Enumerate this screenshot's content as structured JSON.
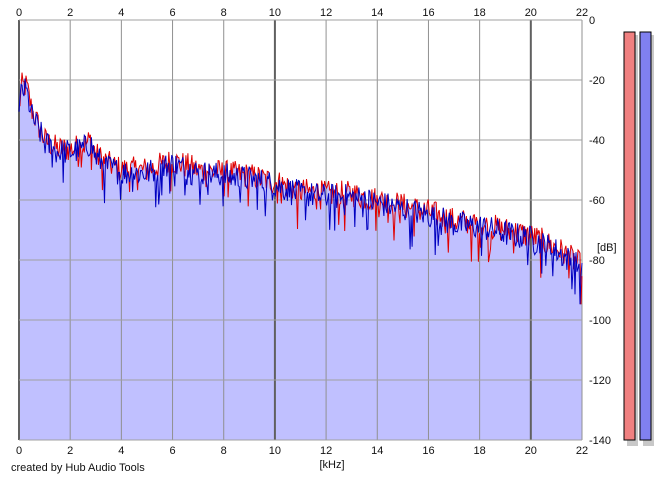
{
  "chart_data": {
    "type": "area",
    "title": "",
    "xlabel": "[kHz]",
    "ylabel": "[dB]",
    "xlim": [
      0,
      22
    ],
    "ylim": [
      -140,
      0
    ],
    "x_ticks": [
      0,
      2,
      4,
      6,
      8,
      10,
      12,
      14,
      16,
      18,
      20,
      22
    ],
    "y_ticks": [
      0,
      -20,
      -40,
      -60,
      -80,
      -100,
      -120,
      -140
    ],
    "grid": true,
    "colors": {
      "fill": "#c0c0ff",
      "left": "#e00000",
      "right": "#0000c0",
      "meter_left": "#f08080",
      "meter_right": "#8080f0"
    },
    "series": [
      {
        "x": [
          0,
          0.1,
          0.3,
          0.5,
          0.8,
          1,
          1.5,
          2,
          2.5,
          2.8,
          3,
          3.5,
          4,
          5,
          6,
          7,
          8,
          9,
          10,
          11,
          12,
          13,
          14,
          15,
          16,
          17,
          18,
          19,
          20,
          21,
          22
        ],
        "values": [
          -30,
          -22,
          -22,
          -30,
          -36,
          -40,
          -43,
          -43,
          -42,
          -40,
          -45,
          -48,
          -50,
          -50,
          -47,
          -50,
          -51,
          -52,
          -54,
          -57,
          -58,
          -58,
          -60,
          -62,
          -64,
          -67,
          -68,
          -70,
          -72,
          -76,
          -82
        ]
      },
      {
        "x": [
          0,
          0.1,
          0.3,
          0.5,
          0.8,
          1,
          1.5,
          2,
          2.5,
          2.8,
          3,
          3.5,
          4,
          5,
          6,
          7,
          8,
          9,
          10,
          11,
          12,
          13,
          14,
          15,
          16,
          17,
          18,
          19,
          20,
          21,
          22
        ],
        "values": [
          -32,
          -23,
          -24,
          -32,
          -37,
          -41,
          -44,
          -44,
          -43,
          -41,
          -46,
          -49,
          -51,
          -51,
          -48,
          -51,
          -52,
          -53,
          -55,
          -58,
          -59,
          -59,
          -61,
          -63,
          -65,
          -68,
          -69,
          -71,
          -73,
          -77,
          -83
        ]
      }
    ]
  },
  "credit": "created by Hub Audio Tools"
}
